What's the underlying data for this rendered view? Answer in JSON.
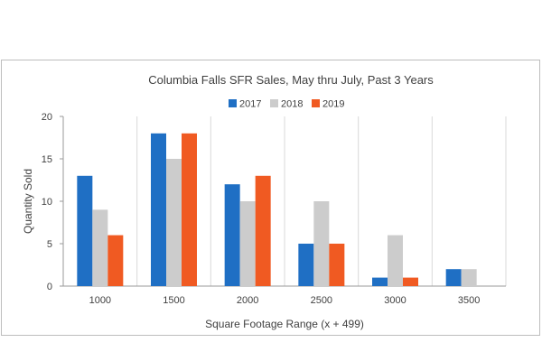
{
  "chart_data": {
    "type": "bar",
    "title": "Columbia Falls SFR Sales, May thru July, Past 3 Years",
    "xlabel": "Square Footage Range (x + 499)",
    "ylabel": "Quantity Sold",
    "categories": [
      "1000",
      "1500",
      "2000",
      "2500",
      "3000",
      "3500"
    ],
    "series": [
      {
        "name": "2017",
        "color": "#1f6fc4",
        "values": [
          13,
          18,
          12,
          5,
          1,
          2
        ]
      },
      {
        "name": "2018",
        "color": "#cccccc",
        "values": [
          9,
          15,
          10,
          10,
          6,
          2
        ]
      },
      {
        "name": "2019",
        "color": "#f05a22",
        "values": [
          6,
          18,
          13,
          5,
          1,
          0
        ]
      }
    ],
    "ylim": [
      0,
      20
    ],
    "yticks": [
      "0",
      "5",
      "10",
      "15",
      "20"
    ],
    "grid": "vertical category separators",
    "legend_position": "top-center"
  }
}
